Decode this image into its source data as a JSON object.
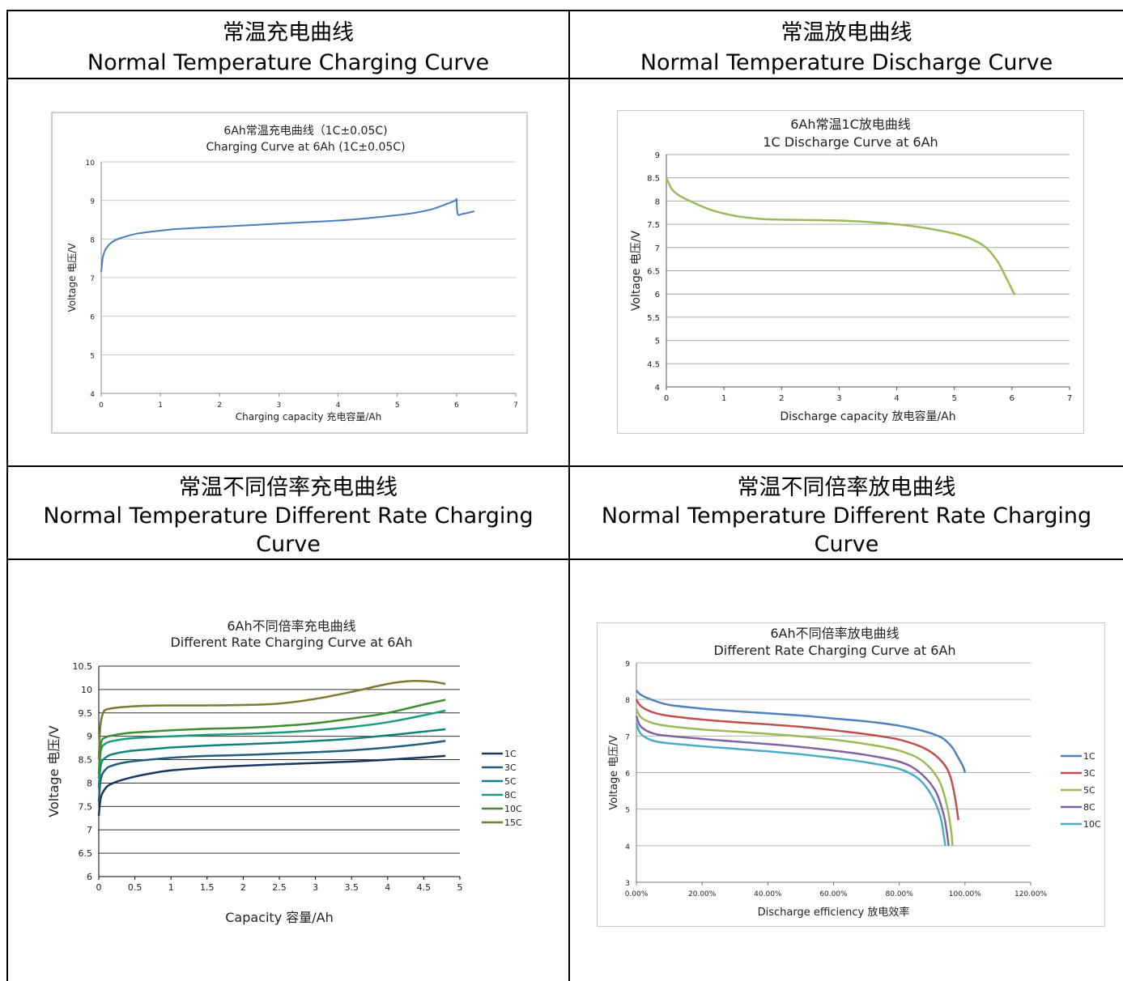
{
  "headers": [
    {
      "zh": "常温充电曲线",
      "en": "Normal Temperature Charging Curve"
    },
    {
      "zh": "常温放电曲线",
      "en": "Normal Temperature Discharge Curve"
    },
    {
      "zh": "常温不同倍率充电曲线",
      "en": "Normal Temperature Different Rate Charging Curve"
    },
    {
      "zh": "常温不同倍率放电曲线",
      "en": "Normal Temperature Different Rate Charging Curve"
    }
  ],
  "chart_data": [
    {
      "type": "line",
      "title": "6Ah常温充电曲线（1C±0.05C)",
      "subtitle": "Charging Curve at 6Ah (1C±0.05C)",
      "xlabel": "Charging capacity 充电容量/Ah",
      "ylabel": "Voltage 电压/V",
      "xlim": [
        0,
        7
      ],
      "ylim": [
        4,
        10
      ],
      "xticks": [
        "0",
        "1",
        "2",
        "3",
        "4",
        "5",
        "6",
        "7"
      ],
      "yticks": [
        "4",
        "5",
        "6",
        "7",
        "8",
        "9",
        "10"
      ],
      "grid": true,
      "color": "#4a7ebb",
      "series": [
        {
          "x": [
            0,
            0.03,
            0.08,
            0.15,
            0.25,
            0.4,
            0.6,
            0.9,
            1.2,
            1.5,
            2.0,
            2.5,
            3.0,
            3.5,
            4.0,
            4.5,
            5.0,
            5.3,
            5.6,
            5.85,
            5.98,
            6.0,
            6.02,
            6.1,
            6.3
          ],
          "y": [
            7.15,
            7.55,
            7.75,
            7.88,
            7.98,
            8.06,
            8.14,
            8.2,
            8.25,
            8.28,
            8.32,
            8.36,
            8.4,
            8.44,
            8.48,
            8.54,
            8.62,
            8.68,
            8.78,
            8.92,
            9.0,
            9.02,
            8.65,
            8.65,
            8.72
          ]
        }
      ]
    },
    {
      "type": "line",
      "title": "6Ah常温1C放电曲线",
      "subtitle": "1C Discharge Curve at 6Ah",
      "xlabel": "Discharge capacity 放电容量/Ah",
      "ylabel": "Voltage 电压/V",
      "xlim": [
        0,
        7
      ],
      "ylim": [
        4,
        9
      ],
      "xticks": [
        "0",
        "1",
        "2",
        "3",
        "4",
        "5",
        "6",
        "7"
      ],
      "yticks": [
        "4",
        "4.5",
        "5",
        "5.5",
        "6",
        "6.5",
        "7",
        "7.5",
        "8",
        "8.5",
        "9"
      ],
      "grid": true,
      "color": "#9bbb59",
      "series": [
        {
          "x": [
            0,
            0.1,
            0.25,
            0.5,
            0.8,
            1.2,
            1.6,
            2.0,
            2.5,
            3.0,
            3.5,
            4.0,
            4.5,
            5.0,
            5.3,
            5.55,
            5.75,
            5.9,
            6.0,
            6.05
          ],
          "y": [
            8.5,
            8.25,
            8.1,
            7.95,
            7.8,
            7.68,
            7.62,
            7.6,
            7.59,
            7.58,
            7.55,
            7.5,
            7.42,
            7.3,
            7.18,
            7.0,
            6.7,
            6.35,
            6.1,
            5.98
          ]
        }
      ]
    },
    {
      "type": "line",
      "title": "6Ah不同倍率充电曲线",
      "subtitle": "Different Rate Charging Curve at 6Ah",
      "xlabel": "Capacity 容量/Ah",
      "ylabel": "Voltage 电压/V",
      "xlim": [
        0,
        5
      ],
      "ylim": [
        6,
        10.5
      ],
      "xticks": [
        "0",
        "0.5",
        "1",
        "1.5",
        "2",
        "2.5",
        "3",
        "3.5",
        "4",
        "4.5",
        "5"
      ],
      "yticks": [
        "6",
        "6.5",
        "7",
        "7.5",
        "8",
        "8.5",
        "9",
        "9.5",
        "10",
        "10.5"
      ],
      "grid": true,
      "legend": "right",
      "series": [
        {
          "name": "1C",
          "color": "#17375e",
          "x": [
            0,
            0.03,
            0.1,
            0.2,
            0.4,
            0.7,
            1,
            1.5,
            2,
            2.5,
            3,
            3.5,
            4,
            4.5,
            4.8
          ],
          "y": [
            7.3,
            7.7,
            7.9,
            8.0,
            8.1,
            8.2,
            8.27,
            8.33,
            8.37,
            8.4,
            8.43,
            8.46,
            8.5,
            8.55,
            8.58
          ]
        },
        {
          "name": "3C",
          "color": "#1f5f7a",
          "x": [
            0,
            0.03,
            0.1,
            0.2,
            0.4,
            0.7,
            1,
            1.5,
            2,
            2.5,
            3,
            3.5,
            4,
            4.5,
            4.8
          ],
          "y": [
            7.6,
            8.1,
            8.3,
            8.38,
            8.45,
            8.5,
            8.54,
            8.58,
            8.6,
            8.63,
            8.66,
            8.7,
            8.76,
            8.84,
            8.9
          ]
        },
        {
          "name": "5C",
          "color": "#12807f",
          "x": [
            0,
            0.03,
            0.1,
            0.2,
            0.4,
            0.7,
            1,
            1.5,
            2,
            2.5,
            3,
            3.5,
            4,
            4.5,
            4.8
          ],
          "y": [
            7.9,
            8.4,
            8.55,
            8.62,
            8.68,
            8.72,
            8.76,
            8.8,
            8.83,
            8.86,
            8.9,
            8.95,
            9.02,
            9.1,
            9.15
          ]
        },
        {
          "name": "8C",
          "color": "#1a9c7a",
          "x": [
            0,
            0.03,
            0.1,
            0.2,
            0.4,
            0.7,
            1,
            1.5,
            2,
            2.5,
            3,
            3.5,
            4,
            4.5,
            4.8
          ],
          "y": [
            8.1,
            8.7,
            8.85,
            8.9,
            8.95,
            8.98,
            9.0,
            9.03,
            9.05,
            9.08,
            9.13,
            9.2,
            9.3,
            9.45,
            9.55
          ]
        },
        {
          "name": "10C",
          "color": "#3e8e2f",
          "x": [
            0,
            0.03,
            0.1,
            0.2,
            0.4,
            0.7,
            1,
            1.5,
            2,
            2.5,
            3,
            3.5,
            4,
            4.5,
            4.8
          ],
          "y": [
            8.2,
            8.85,
            8.98,
            9.02,
            9.07,
            9.1,
            9.13,
            9.16,
            9.18,
            9.22,
            9.28,
            9.38,
            9.5,
            9.68,
            9.78
          ]
        },
        {
          "name": "15C",
          "color": "#7a7a32",
          "x": [
            0,
            0.02,
            0.06,
            0.12,
            0.3,
            0.6,
            1,
            1.5,
            2,
            2.5,
            3,
            3.5,
            4,
            4.3,
            4.6,
            4.8
          ],
          "y": [
            8.5,
            9.2,
            9.5,
            9.58,
            9.62,
            9.65,
            9.66,
            9.66,
            9.67,
            9.7,
            9.8,
            9.95,
            10.12,
            10.18,
            10.17,
            10.12
          ]
        }
      ]
    },
    {
      "type": "line",
      "title": "6Ah不同倍率放电曲线",
      "subtitle": "Different Rate Charging Curve at 6Ah",
      "xlabel": "Discharge efficiency 放电效率",
      "ylabel": "Voltage 电压/V",
      "xlim": [
        0,
        120
      ],
      "ylim": [
        3,
        9
      ],
      "xticks": [
        "0.00%",
        "20.00%",
        "40.00%",
        "60.00%",
        "80.00%",
        "100.00%",
        "120.00%"
      ],
      "yticks": [
        "3",
        "4",
        "5",
        "6",
        "7",
        "8",
        "9"
      ],
      "grid": true,
      "legend": "right",
      "series": [
        {
          "name": "1C",
          "color": "#4f81bd",
          "x": [
            0,
            1,
            3,
            6,
            10,
            20,
            30,
            40,
            50,
            60,
            70,
            80,
            88,
            93,
            96,
            98,
            99.5,
            100
          ],
          "y": [
            8.25,
            8.15,
            8.05,
            7.95,
            7.85,
            7.75,
            7.68,
            7.62,
            7.56,
            7.48,
            7.4,
            7.28,
            7.12,
            6.95,
            6.7,
            6.4,
            6.15,
            6.0
          ]
        },
        {
          "name": "3C",
          "color": "#c0504d",
          "x": [
            0,
            1,
            3,
            6,
            10,
            20,
            30,
            40,
            50,
            60,
            70,
            80,
            88,
            93,
            95.5,
            97,
            98
          ],
          "y": [
            8.0,
            7.85,
            7.72,
            7.62,
            7.55,
            7.45,
            7.38,
            7.32,
            7.25,
            7.16,
            7.05,
            6.9,
            6.65,
            6.3,
            5.9,
            5.3,
            4.7
          ]
        },
        {
          "name": "5C",
          "color": "#9bbb59",
          "x": [
            0,
            1,
            3,
            6,
            10,
            20,
            30,
            40,
            50,
            60,
            70,
            80,
            87,
            92,
            94.5,
            95.8,
            96.2
          ],
          "y": [
            7.75,
            7.55,
            7.42,
            7.33,
            7.27,
            7.18,
            7.12,
            7.06,
            6.99,
            6.9,
            6.78,
            6.6,
            6.32,
            5.8,
            5.1,
            4.4,
            4.0
          ]
        },
        {
          "name": "8C",
          "color": "#8064a2",
          "x": [
            0,
            1,
            3,
            6,
            10,
            20,
            30,
            40,
            50,
            60,
            70,
            80,
            86,
            91,
            93.5,
            94.6,
            95
          ],
          "y": [
            7.55,
            7.3,
            7.15,
            7.05,
            7.0,
            6.92,
            6.85,
            6.78,
            6.7,
            6.6,
            6.48,
            6.3,
            6.02,
            5.5,
            4.85,
            4.3,
            4.0
          ]
        },
        {
          "name": "10C",
          "color": "#4bacc6",
          "x": [
            0,
            1,
            3,
            6,
            10,
            20,
            30,
            40,
            50,
            60,
            70,
            80,
            86,
            90,
            92.5,
            93.5,
            94
          ],
          "y": [
            7.35,
            7.1,
            6.95,
            6.85,
            6.8,
            6.72,
            6.65,
            6.58,
            6.5,
            6.4,
            6.28,
            6.1,
            5.82,
            5.35,
            4.8,
            4.3,
            4.0
          ]
        }
      ]
    }
  ]
}
